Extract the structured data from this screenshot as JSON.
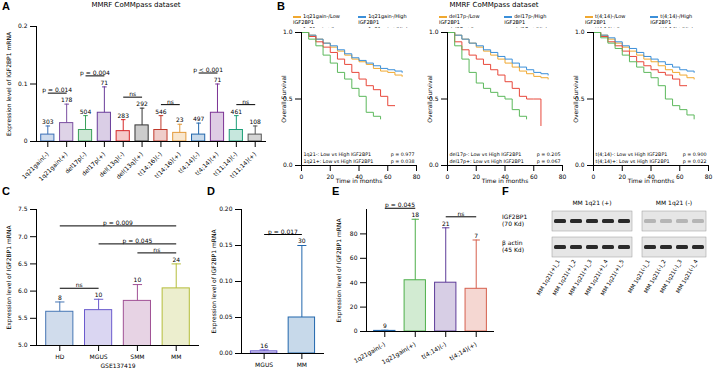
{
  "chart_data": [
    {
      "type": "bar",
      "label": "A",
      "title": "MMRF CoMMpass dataset",
      "categories": [
        "1q21gain(-)",
        "1q21gain(+)",
        "del17p(-)",
        "del17p(+)",
        "del(13q)(-)",
        "del(13q)(+)",
        "t(14;16)(-)",
        "t(14;16)(+)",
        "t(4;14)(-)",
        "t(4;14)(+)",
        "t(11;14)(-)",
        "t(11;14)(+)"
      ],
      "values": [
        0.012,
        0.032,
        0.02,
        0.05,
        0.018,
        0.028,
        0.02,
        0.015,
        0.012,
        0.05,
        0.02,
        0.012
      ],
      "errors": [
        0.015,
        0.033,
        0.025,
        0.045,
        0.02,
        0.03,
        0.025,
        0.015,
        0.02,
        0.05,
        0.025,
        0.015
      ],
      "counts": [
        303,
        178,
        504,
        71,
        283,
        292,
        546,
        23,
        497,
        71,
        461,
        108
      ],
      "colors": [
        "#3b6fb6",
        "#7b4fa0",
        "#3aa05a",
        "#6a3d9a",
        "#d62728",
        "#333333",
        "#c0392b",
        "#e39b3b",
        "#2166ac",
        "#7b3294",
        "#1b9e77",
        "#555555"
      ],
      "ylabel": "Expression level of IGF2BP1 mRNA",
      "ylim": [
        0,
        0.2
      ],
      "yticks": [
        0,
        0.1,
        0.2
      ],
      "comparisons": [
        {
          "between": [
            "1q21gain(-)",
            "1q21gain(+)"
          ],
          "text": "p = 0.014"
        },
        {
          "between": [
            "del17p(-)",
            "del17p(+)"
          ],
          "text": "p = 0.004"
        },
        {
          "between": [
            "del(13q)(-)",
            "del(13q)(+)"
          ],
          "text": "ns"
        },
        {
          "between": [
            "t(14;16)(-)",
            "t(14;16)(+)"
          ],
          "text": "ns"
        },
        {
          "between": [
            "t(4;14)(-)",
            "t(4;14)(+)"
          ],
          "text": "p < 0.001"
        },
        {
          "between": [
            "t(11;14)(-)",
            "t(11;14)(+)"
          ],
          "text": "ns"
        }
      ]
    },
    {
      "type": "line",
      "label": "B",
      "title": "MMRF CoMMpass dataset",
      "xlabel": "Time in months",
      "ylabel": "Overall Survival",
      "xlim": [
        0,
        80
      ],
      "xticks": [
        0,
        20,
        40,
        60,
        80
      ],
      "ylim": [
        0,
        1
      ],
      "yticks": [
        {
          "value": 0,
          "label": "0.0"
        },
        {
          "value": 0.5,
          "label": "0.5"
        },
        {
          "value": 1,
          "label": "1.0"
        }
      ],
      "series": [
        {
          "name": "1q21gain-/Low IGF2BP1",
          "color": "#f0a830",
          "x": [
            0,
            5,
            10,
            15,
            20,
            25,
            30,
            35,
            40,
            45,
            50,
            55,
            60,
            65,
            70
          ],
          "values": [
            1,
            0.98,
            0.95,
            0.92,
            0.89,
            0.86,
            0.83,
            0.8,
            0.78,
            0.76,
            0.73,
            0.71,
            0.7,
            0.68,
            0.67
          ]
        },
        {
          "name": "1q21gain-/High IGF2BP1",
          "color": "#3b8fd9",
          "x": [
            0,
            5,
            10,
            15,
            20,
            25,
            30,
            35,
            40,
            45,
            50,
            55,
            60,
            65,
            70
          ],
          "values": [
            1,
            0.98,
            0.95,
            0.92,
            0.9,
            0.87,
            0.84,
            0.81,
            0.79,
            0.77,
            0.75,
            0.73,
            0.72,
            0.71,
            0.7
          ]
        },
        {
          "name": "1q21gain+/Low IGF2BP1",
          "color": "#e8483b",
          "x": [
            0,
            5,
            10,
            15,
            20,
            25,
            30,
            35,
            40,
            45,
            50,
            55,
            60,
            65
          ],
          "values": [
            1,
            0.97,
            0.93,
            0.89,
            0.85,
            0.8,
            0.76,
            0.7,
            0.65,
            0.6,
            0.57,
            0.52,
            0.45,
            0.45
          ]
        },
        {
          "name": "1q21gain+/High IGF2BP1",
          "color": "#5cb85c",
          "x": [
            0,
            5,
            10,
            15,
            20,
            25,
            30,
            35,
            40,
            45,
            50,
            55
          ],
          "values": [
            1,
            0.95,
            0.9,
            0.83,
            0.77,
            0.7,
            0.65,
            0.58,
            0.52,
            0.4,
            0.37,
            0.35
          ]
        }
      ],
      "annotations": [
        {
          "text": "1q21-: Low vs High IGF2BP1",
          "p": "p = 0.977"
        },
        {
          "text": "1q21+: Low vs High IGF2BP1",
          "p": "p = 0.038"
        }
      ]
    },
    {
      "type": "line",
      "xlabel": "Time in months",
      "ylabel": "Overall Survival",
      "xlim": [
        0,
        80
      ],
      "xticks": [
        0,
        20,
        40,
        60,
        80
      ],
      "ylim": [
        0,
        1
      ],
      "yticks": [
        {
          "value": 0,
          "label": "0.0"
        },
        {
          "value": 0.5,
          "label": "0.5"
        },
        {
          "value": 1,
          "label": "1.0"
        }
      ],
      "series": [
        {
          "name": "del17p-/Low IGF2BP1",
          "color": "#f0a830",
          "x": [
            0,
            5,
            10,
            15,
            20,
            25,
            30,
            35,
            40,
            45,
            50,
            55,
            60,
            65,
            70
          ],
          "values": [
            1,
            0.98,
            0.95,
            0.92,
            0.89,
            0.86,
            0.83,
            0.8,
            0.77,
            0.74,
            0.71,
            0.69,
            0.67,
            0.66,
            0.65
          ]
        },
        {
          "name": "del17p-/High IGF2BP1",
          "color": "#3b8fd9",
          "x": [
            0,
            5,
            10,
            15,
            20,
            25,
            30,
            35,
            40,
            45,
            50,
            55,
            60,
            65,
            70
          ],
          "values": [
            1,
            0.98,
            0.95,
            0.92,
            0.9,
            0.87,
            0.85,
            0.82,
            0.8,
            0.77,
            0.74,
            0.72,
            0.7,
            0.69,
            0.68
          ]
        },
        {
          "name": "del17p+/Low IGF2BP1",
          "color": "#e8483b",
          "x": [
            0,
            5,
            10,
            15,
            20,
            25,
            30,
            35,
            40,
            45,
            50,
            55,
            60,
            65
          ],
          "values": [
            1,
            0.93,
            0.87,
            0.83,
            0.8,
            0.76,
            0.72,
            0.68,
            0.63,
            0.58,
            0.52,
            0.5,
            0.5,
            0.3
          ]
        },
        {
          "name": "del17p+/High IGF2BP1",
          "color": "#5cb85c",
          "x": [
            0,
            5,
            10,
            15,
            20,
            25,
            30,
            35,
            40,
            45,
            50,
            55
          ],
          "values": [
            1,
            0.9,
            0.8,
            0.7,
            0.62,
            0.58,
            0.55,
            0.52,
            0.5,
            0.42,
            0.37,
            0.35
          ]
        }
      ],
      "annotations": [
        {
          "text": "del17p-: Low vs High IGF2BP1",
          "p": "p = 0.205"
        },
        {
          "text": "del17p+: Low vs High IGF2BP1",
          "p": "p = 0.067"
        }
      ]
    },
    {
      "type": "line",
      "xlabel": "Time in months",
      "ylabel": "Overall Survival",
      "xlim": [
        0,
        80
      ],
      "xticks": [
        0,
        20,
        40,
        60,
        80
      ],
      "ylim": [
        0,
        1
      ],
      "yticks": [
        {
          "value": 0,
          "label": "0.0"
        },
        {
          "value": 0.5,
          "label": "0.5"
        },
        {
          "value": 1,
          "label": "1.0"
        }
      ],
      "series": [
        {
          "name": "t(4;14)-/Low IGF2BP1",
          "color": "#f0a830",
          "x": [
            0,
            5,
            10,
            15,
            20,
            25,
            30,
            35,
            40,
            45,
            50,
            55,
            60,
            65,
            70
          ],
          "values": [
            1,
            0.98,
            0.95,
            0.92,
            0.89,
            0.86,
            0.83,
            0.8,
            0.78,
            0.75,
            0.72,
            0.7,
            0.68,
            0.66,
            0.65
          ]
        },
        {
          "name": "t(4;14)-/High IGF2BP1",
          "color": "#3b8fd9",
          "x": [
            0,
            5,
            10,
            15,
            20,
            25,
            30,
            35,
            40,
            45,
            50,
            55,
            60,
            65,
            70
          ],
          "values": [
            1,
            0.98,
            0.96,
            0.93,
            0.9,
            0.88,
            0.85,
            0.82,
            0.8,
            0.78,
            0.76,
            0.74,
            0.72,
            0.71,
            0.7
          ]
        },
        {
          "name": "t(4;14)+/Low IGF2BP1",
          "color": "#e8483b",
          "x": [
            0,
            5,
            10,
            15,
            20,
            25,
            30,
            35,
            40,
            45,
            50,
            55,
            60,
            65
          ],
          "values": [
            1,
            0.97,
            0.93,
            0.9,
            0.86,
            0.82,
            0.78,
            0.75,
            0.72,
            0.7,
            0.68,
            0.65,
            0.6,
            0.6
          ]
        },
        {
          "name": "t(4;14)+/High IGF2BP1",
          "color": "#5cb85c",
          "x": [
            0,
            5,
            10,
            15,
            20,
            25,
            30,
            35,
            40,
            45,
            50,
            55,
            60,
            65,
            70
          ],
          "values": [
            1,
            0.96,
            0.92,
            0.88,
            0.83,
            0.78,
            0.74,
            0.7,
            0.66,
            0.6,
            0.5,
            0.45,
            0.42,
            0.38,
            0.35
          ]
        }
      ],
      "annotations": [
        {
          "text": "t(4;14)-: Low vs High IGF2BP1",
          "p": "p = 0.900"
        },
        {
          "text": "t(4;14)+: Low vs High IGF2BP1",
          "p": "p = 0.022"
        }
      ]
    },
    {
      "type": "bar",
      "label": "C",
      "xlabel": "GSE137419",
      "categories": [
        "HD",
        "MGUS",
        "SMM",
        "MM"
      ],
      "values": [
        5.62,
        5.65,
        5.82,
        6.05
      ],
      "errors": [
        0.18,
        0.2,
        0.3,
        0.45
      ],
      "counts": [
        8,
        10,
        10,
        24
      ],
      "colors": [
        "#4575b4",
        "#6a5acd",
        "#a05195",
        "#b5bd3a"
      ],
      "ylabel": "Expression level of IGF2BP1 mRNA",
      "ylim": [
        5.0,
        7.5
      ],
      "yticks": [
        {
          "value": 5.0,
          "label": "5.0"
        },
        5.5,
        {
          "value": 6.0,
          "label": "6.0"
        },
        6.5,
        {
          "value": 7.0,
          "label": "7.0"
        },
        7.5
      ],
      "comparisons": [
        {
          "between": [
            "HD",
            "MGUS"
          ],
          "text": "ns"
        },
        {
          "between": [
            "SMM",
            "MM"
          ],
          "text": "ns"
        },
        {
          "between": [
            "MGUS",
            "MM"
          ],
          "text": "p = 0.045"
        },
        {
          "between": [
            "HD",
            "MM"
          ],
          "text": "p = 0.009"
        }
      ]
    },
    {
      "type": "bar",
      "label": "D",
      "categories": [
        "MGUS",
        "MM"
      ],
      "values": [
        0.003,
        0.05
      ],
      "errors": [
        0.002,
        0.1
      ],
      "counts": [
        16,
        30
      ],
      "colors": [
        "#6a5acd",
        "#2166ac"
      ],
      "ylabel": "Expression level of IGF2BP1 mRNA",
      "ylim": [
        0,
        0.2
      ],
      "yticks": [
        {
          "value": 0,
          "label": "0.00"
        },
        0.05,
        {
          "value": 0.1,
          "label": "0.10"
        },
        0.15,
        {
          "value": 0.2,
          "label": "0.20"
        }
      ],
      "comparisons": [
        {
          "between": [
            "MGUS",
            "MM"
          ],
          "text": "p = 0.017"
        }
      ]
    },
    {
      "type": "bar",
      "label": "E",
      "categories": [
        "1q21gain(-)",
        "1q21gain(+)",
        "t(4;14)(-)",
        "t(4;14)(+)"
      ],
      "values": [
        0.5,
        42,
        40,
        35
      ],
      "errors": [
        0.5,
        50,
        45,
        40
      ],
      "counts": [
        9,
        18,
        21,
        7
      ],
      "colors": [
        "#2166ac",
        "#4daf4a",
        "#5e3c99",
        "#d6604d"
      ],
      "ylabel": "Expression level of IGF2BP1 mRNA",
      "ylim": [
        0,
        100
      ],
      "yticks": [
        0,
        20,
        40,
        60,
        80
      ],
      "comparisons": [
        {
          "between": [
            "1q21gain(-)",
            "1q21gain(+)"
          ],
          "text": "p = 0.045"
        },
        {
          "between": [
            "t(4;14)(-)",
            "t(4;14)(+)"
          ],
          "text": "ns"
        }
      ]
    },
    {
      "type": "blot",
      "label": "F",
      "rows": [
        {
          "name": "IGF2BP1",
          "size": "(70 Kd)"
        },
        {
          "name": "β actin",
          "size": "(45 Kd)"
        }
      ],
      "groups": [
        {
          "name": "MM 1q21 (+)",
          "lanes": [
            "MM 1q21(+)_1",
            "MM 1q21(+)_2",
            "MM 1q21(+)_3",
            "MM 1q21(+)_4",
            "MM 1q21(+)_5"
          ]
        },
        {
          "name": "MM 1q21 (-)",
          "lanes": [
            "MM 1q21(-)_1",
            "MM 1q21(-)_2",
            "MM 1q21(-)_3",
            "MM 1q21(-)_4"
          ]
        }
      ]
    }
  ]
}
